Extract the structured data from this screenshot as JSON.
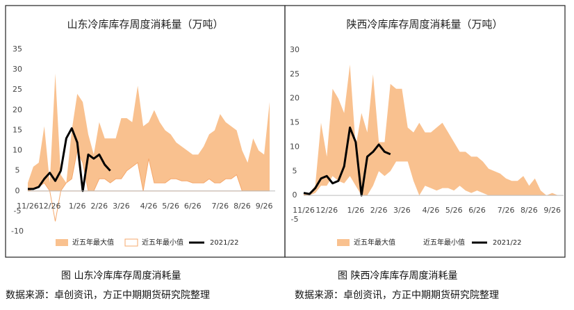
{
  "chart_data": [
    {
      "type": "area",
      "title": "山东冷库库存周度消耗量（万吨）",
      "caption": "图  山东冷库库存周度消耗量",
      "source": "数据来源：卓创资讯，方正中期期货研究院整理",
      "categories": [
        "11/26",
        null,
        null,
        null,
        "12/26",
        null,
        null,
        null,
        null,
        "1/26",
        null,
        null,
        null,
        "2/26",
        null,
        null,
        null,
        "3/26",
        null,
        null,
        null,
        null,
        "4/26",
        null,
        null,
        null,
        "5/26",
        null,
        null,
        null,
        "6/26",
        null,
        null,
        null,
        null,
        "7/26",
        null,
        null,
        null,
        "8/26",
        null,
        null,
        null,
        "9/26",
        null
      ],
      "ylim": [
        -10,
        35
      ],
      "yticks": [
        -10,
        -5,
        0,
        5,
        10,
        15,
        20,
        25,
        30,
        35
      ],
      "series": [
        {
          "name": "近五年最大值",
          "type": "area",
          "color": "#f9c18f",
          "values": [
            2,
            6,
            7,
            16,
            2,
            29,
            4,
            2,
            15,
            24,
            22,
            14,
            9,
            17,
            13,
            13,
            13,
            18,
            18,
            17,
            26,
            16,
            17,
            20,
            17,
            15,
            14,
            12,
            11,
            10,
            9,
            9,
            11,
            14,
            15,
            19,
            17,
            16,
            15,
            10,
            7,
            13,
            10,
            9,
            22
          ]
        },
        {
          "name": "近五年最小值",
          "type": "area",
          "color": "#ffffff",
          "edge": "#f5a86c",
          "values": [
            0,
            0.5,
            1,
            2,
            0,
            -7.5,
            0,
            2,
            3,
            10,
            7,
            0,
            0,
            3,
            3,
            2,
            3,
            3,
            5,
            6,
            7,
            0,
            8,
            2,
            2,
            2,
            3,
            3,
            2.5,
            2.5,
            2,
            2,
            2,
            3,
            2,
            2,
            3,
            3,
            4,
            0,
            0,
            0,
            0,
            0,
            0
          ]
        },
        {
          "name": "2021/22",
          "type": "line",
          "color": "#000000",
          "values": [
            0.5,
            0.5,
            1,
            3,
            4.5,
            2.5,
            5,
            13,
            15.5,
            12,
            0,
            9,
            8,
            9,
            6.5,
            5,
            null,
            null,
            null,
            null,
            null,
            null,
            null,
            null,
            null,
            null,
            null,
            null,
            null,
            null,
            null,
            null,
            null,
            null,
            null,
            null,
            null,
            null,
            null,
            null,
            null,
            null,
            null,
            null,
            null
          ]
        }
      ]
    },
    {
      "type": "area",
      "title": "陕西冷库库存周度消耗量（万吨）",
      "caption": "图  陕西冷库库存周度消耗量",
      "source": "数据来源：卓创资讯，方正中期期货研究院整理",
      "categories": [
        "11/26",
        null,
        null,
        null,
        "12/26",
        null,
        null,
        null,
        null,
        "1/26",
        null,
        null,
        null,
        "2/26",
        null,
        null,
        null,
        "3/26",
        null,
        null,
        null,
        null,
        "4/26",
        null,
        null,
        null,
        "5/26",
        null,
        null,
        null,
        "6/26",
        null,
        null,
        null,
        null,
        "7/26",
        null,
        null,
        null,
        "8/26",
        null,
        null,
        null,
        "9/26",
        null
      ],
      "ylim": [
        -5,
        30
      ],
      "yticks": [
        -5,
        0,
        5,
        10,
        15,
        20,
        25,
        30
      ],
      "series": [
        {
          "name": "近五年最大值",
          "type": "area",
          "color": "#f9c18f",
          "values": [
            0.5,
            0.5,
            2,
            15,
            8,
            22,
            20,
            17,
            27,
            10,
            17,
            13,
            25,
            11,
            11,
            23,
            22,
            22,
            14,
            13,
            15,
            13,
            13,
            14,
            15,
            13,
            11,
            9,
            9,
            8,
            8,
            7,
            5.5,
            5,
            4.5,
            3.5,
            3,
            3,
            4,
            2,
            3.5,
            1,
            0,
            0.5,
            0
          ]
        },
        {
          "name": "近五年最小值",
          "type": "area",
          "color": "#ffffff",
          "values": [
            0,
            0,
            0.5,
            2,
            2,
            4,
            3,
            2.5,
            4,
            2,
            0,
            0,
            2,
            5,
            4,
            5,
            7,
            7,
            7,
            3,
            0,
            2,
            1.5,
            1,
            1.5,
            1.5,
            1,
            2,
            1,
            0.5,
            1,
            0.5,
            0,
            0,
            0,
            0,
            0,
            0,
            0,
            0,
            0,
            0,
            0,
            0,
            0
          ]
        },
        {
          "name": "2021/22",
          "type": "line",
          "color": "#000000",
          "values": [
            0.5,
            0.3,
            1.5,
            3.5,
            4,
            2.5,
            3,
            6,
            14,
            11,
            0,
            8,
            9,
            10.5,
            9,
            8.5,
            null,
            null,
            null,
            null,
            null,
            null,
            null,
            null,
            null,
            null,
            null,
            null,
            null,
            null,
            null,
            null,
            null,
            null,
            null,
            null,
            null,
            null,
            null,
            null,
            null,
            null,
            null,
            null,
            null
          ]
        }
      ]
    }
  ]
}
